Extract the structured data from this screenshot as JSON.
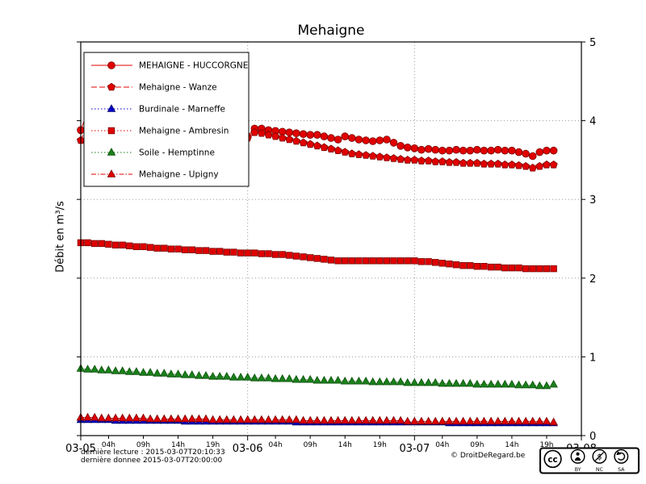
{
  "title": "Mehaigne",
  "ylabel": "Débit en m³/s",
  "footer": {
    "line1": "dernière lecture : 2015-03-07T20:10:33",
    "line2": "dernière donnee  2015-03-07T20:00:00",
    "copyright": "© DroitDeRegard.be"
  },
  "license_badge": {
    "cc": "cc",
    "by": "BY",
    "nc": "NC",
    "sa": "SA"
  },
  "chart_data": {
    "type": "line",
    "title": "Mehaigne",
    "xlabel": "",
    "ylabel": "Débit en m³/s",
    "x_unit": "hours since 2015-03-05 00:00",
    "x_range": [
      0,
      72
    ],
    "ylim": [
      0,
      5
    ],
    "y_ticks": [
      0,
      1,
      2,
      3,
      4,
      5
    ],
    "x_major_ticks": [
      {
        "t": 0,
        "label": "03-05"
      },
      {
        "t": 24,
        "label": "03-06"
      },
      {
        "t": 48,
        "label": "03-07"
      },
      {
        "t": 72,
        "label": "03-08"
      }
    ],
    "x_minor_ticks": [
      {
        "t": 4,
        "label": "04h"
      },
      {
        "t": 9,
        "label": "09h"
      },
      {
        "t": 14,
        "label": "14h"
      },
      {
        "t": 19,
        "label": "19h"
      },
      {
        "t": 28,
        "label": "04h"
      },
      {
        "t": 33,
        "label": "09h"
      },
      {
        "t": 38,
        "label": "14h"
      },
      {
        "t": 43,
        "label": "19h"
      },
      {
        "t": 52,
        "label": "04h"
      },
      {
        "t": 57,
        "label": "09h"
      },
      {
        "t": 62,
        "label": "14h"
      },
      {
        "t": 67,
        "label": "19h"
      }
    ],
    "grid": "dotted",
    "legend_position": "upper left",
    "series": [
      {
        "name": "MEHAIGNE - HUCCORGNE",
        "color": "#e00000",
        "edge": "#7a0000",
        "marker": "circle",
        "line": "solid",
        "t0": 0,
        "dt": 1,
        "values": [
          3.88,
          4.12,
          4.18,
          4.05,
          3.98,
          3.95,
          3.92,
          3.9,
          3.88,
          3.87,
          3.86,
          3.85,
          3.84,
          3.83,
          3.82,
          3.81,
          3.8,
          3.79,
          3.78,
          3.77,
          3.76,
          3.76,
          3.75,
          3.76,
          3.8,
          3.9,
          3.9,
          3.88,
          3.87,
          3.86,
          3.85,
          3.84,
          3.83,
          3.82,
          3.82,
          3.8,
          3.78,
          3.76,
          3.8,
          3.78,
          3.76,
          3.75,
          3.74,
          3.75,
          3.76,
          3.72,
          3.68,
          3.66,
          3.65,
          3.63,
          3.64,
          3.63,
          3.62,
          3.62,
          3.63,
          3.62,
          3.62,
          3.63,
          3.62,
          3.62,
          3.63,
          3.62,
          3.62,
          3.6,
          3.58,
          3.55,
          3.6,
          3.62,
          3.62
        ]
      },
      {
        "name": "Mehaigne - Wanze",
        "color": "#e00000",
        "edge": "#7a0000",
        "marker": "pentagon",
        "line": "dashed",
        "t0": 0,
        "dt": 1,
        "values": [
          3.75,
          3.95,
          4.02,
          3.92,
          3.85,
          3.8,
          3.78,
          3.76,
          3.75,
          3.74,
          3.73,
          3.72,
          3.71,
          3.7,
          3.7,
          3.69,
          3.68,
          3.68,
          3.67,
          3.67,
          3.66,
          3.66,
          3.65,
          3.68,
          3.78,
          3.85,
          3.84,
          3.82,
          3.8,
          3.78,
          3.76,
          3.74,
          3.72,
          3.7,
          3.68,
          3.66,
          3.64,
          3.62,
          3.6,
          3.58,
          3.57,
          3.56,
          3.55,
          3.54,
          3.53,
          3.52,
          3.51,
          3.5,
          3.5,
          3.49,
          3.49,
          3.48,
          3.48,
          3.47,
          3.47,
          3.46,
          3.46,
          3.46,
          3.45,
          3.45,
          3.45,
          3.44,
          3.44,
          3.43,
          3.42,
          3.4,
          3.42,
          3.44,
          3.44
        ]
      },
      {
        "name": "Burdinale - Marneffe",
        "color": "#0000cc",
        "edge": "#000066",
        "marker": "triangle",
        "line": "dotted",
        "t0": 0,
        "dt": 1,
        "values": [
          0.2,
          0.2,
          0.2,
          0.2,
          0.2,
          0.19,
          0.19,
          0.19,
          0.19,
          0.19,
          0.19,
          0.19,
          0.19,
          0.19,
          0.19,
          0.18,
          0.18,
          0.18,
          0.18,
          0.18,
          0.18,
          0.18,
          0.18,
          0.18,
          0.18,
          0.18,
          0.18,
          0.18,
          0.18,
          0.18,
          0.18,
          0.17,
          0.17,
          0.17,
          0.17,
          0.17,
          0.17,
          0.17,
          0.17,
          0.17,
          0.17,
          0.17,
          0.17,
          0.17,
          0.17,
          0.17,
          0.17,
          0.17,
          0.17,
          0.17,
          0.17,
          0.17,
          0.17,
          0.16,
          0.16,
          0.16,
          0.16,
          0.16,
          0.16,
          0.16,
          0.16,
          0.16,
          0.16,
          0.16,
          0.16,
          0.16,
          0.16,
          0.16,
          0.16
        ]
      },
      {
        "name": "Mehaigne - Ambresin",
        "color": "#e00000",
        "edge": "#7a0000",
        "marker": "square",
        "line": "dotted",
        "t0": 0,
        "dt": 1,
        "values": [
          2.45,
          2.45,
          2.44,
          2.44,
          2.43,
          2.42,
          2.42,
          2.41,
          2.4,
          2.4,
          2.39,
          2.38,
          2.38,
          2.37,
          2.37,
          2.36,
          2.36,
          2.35,
          2.35,
          2.34,
          2.34,
          2.33,
          2.33,
          2.32,
          2.32,
          2.32,
          2.31,
          2.31,
          2.3,
          2.3,
          2.29,
          2.28,
          2.27,
          2.26,
          2.25,
          2.24,
          2.23,
          2.22,
          2.22,
          2.22,
          2.22,
          2.22,
          2.22,
          2.22,
          2.22,
          2.22,
          2.22,
          2.22,
          2.22,
          2.21,
          2.21,
          2.2,
          2.19,
          2.18,
          2.17,
          2.16,
          2.16,
          2.15,
          2.15,
          2.14,
          2.14,
          2.13,
          2.13,
          2.13,
          2.12,
          2.12,
          2.12,
          2.12,
          2.12
        ]
      },
      {
        "name": "Soile - Hemptinne",
        "color": "#1a801a",
        "edge": "#0d4f0d",
        "marker": "triangle",
        "line": "dotted",
        "t0": 0,
        "dt": 1,
        "values": [
          0.85,
          0.84,
          0.84,
          0.83,
          0.83,
          0.82,
          0.82,
          0.81,
          0.81,
          0.8,
          0.8,
          0.79,
          0.79,
          0.78,
          0.78,
          0.77,
          0.77,
          0.76,
          0.76,
          0.75,
          0.75,
          0.75,
          0.74,
          0.74,
          0.74,
          0.73,
          0.73,
          0.73,
          0.72,
          0.72,
          0.72,
          0.71,
          0.71,
          0.71,
          0.7,
          0.7,
          0.7,
          0.7,
          0.69,
          0.69,
          0.69,
          0.69,
          0.68,
          0.68,
          0.68,
          0.68,
          0.68,
          0.67,
          0.67,
          0.67,
          0.67,
          0.67,
          0.66,
          0.66,
          0.66,
          0.66,
          0.66,
          0.65,
          0.65,
          0.65,
          0.65,
          0.65,
          0.65,
          0.64,
          0.64,
          0.64,
          0.63,
          0.63,
          0.65
        ]
      },
      {
        "name": "Mehaigne - Upigny",
        "color": "#e00000",
        "edge": "#7a0000",
        "marker": "triangle",
        "line": "dashdot",
        "t0": 0,
        "dt": 1,
        "values": [
          0.23,
          0.23,
          0.23,
          0.22,
          0.22,
          0.22,
          0.22,
          0.22,
          0.22,
          0.22,
          0.21,
          0.21,
          0.21,
          0.21,
          0.21,
          0.21,
          0.21,
          0.21,
          0.21,
          0.2,
          0.2,
          0.2,
          0.2,
          0.2,
          0.2,
          0.2,
          0.2,
          0.2,
          0.2,
          0.2,
          0.2,
          0.2,
          0.19,
          0.19,
          0.19,
          0.19,
          0.19,
          0.19,
          0.19,
          0.19,
          0.19,
          0.19,
          0.19,
          0.19,
          0.19,
          0.19,
          0.19,
          0.18,
          0.18,
          0.18,
          0.18,
          0.18,
          0.18,
          0.18,
          0.18,
          0.18,
          0.18,
          0.18,
          0.18,
          0.18,
          0.18,
          0.18,
          0.18,
          0.18,
          0.18,
          0.18,
          0.18,
          0.18,
          0.17
        ]
      }
    ]
  }
}
